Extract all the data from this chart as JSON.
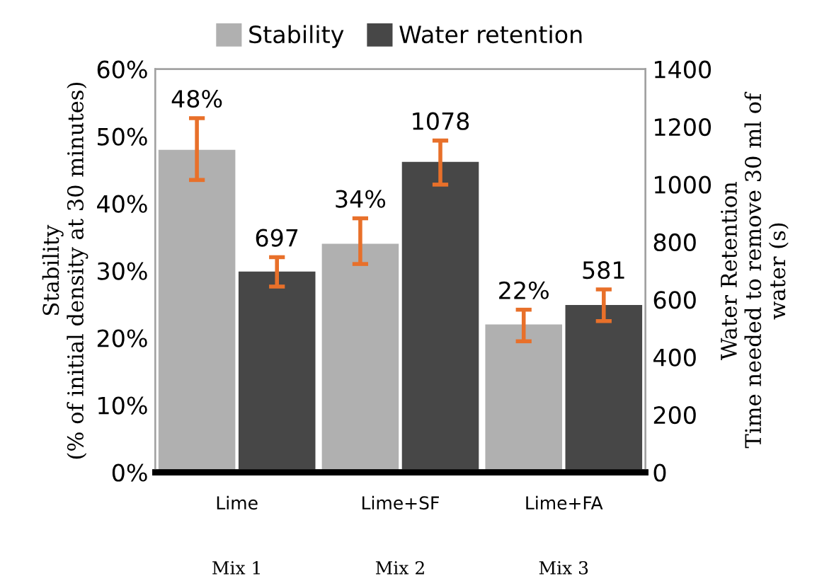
{
  "chart_data": {
    "type": "bar",
    "ylabel": "Stability\n(% of initial density at 30 minutes)",
    "y2label": "Water Retention\nTime needed to remove 30 ml of\nwater (s)",
    "categories": [
      "Lime",
      "Lime+SF",
      "Lime+FA"
    ],
    "annotations": [
      "Mix 1",
      "Mix 2",
      "Mix 3"
    ],
    "series": [
      {
        "name": "Stability",
        "color": "#b0b0b0",
        "values": [
          48,
          34,
          22
        ],
        "errors": [
          [
            43.5,
            52.7
          ],
          [
            31.0,
            37.8
          ],
          [
            19.5,
            24.2
          ]
        ],
        "value_labels": [
          "48%",
          "34%",
          "22%"
        ]
      },
      {
        "name": "Water retention",
        "color": "#474747",
        "axis": "y2",
        "values": [
          697,
          1078,
          581
        ],
        "errors": [
          [
            645,
            747
          ],
          [
            999,
            1152
          ],
          [
            525,
            635
          ]
        ],
        "value_labels": [
          "697",
          "1078",
          "581"
        ]
      }
    ],
    "ylim": [
      0,
      60
    ],
    "yticks": [
      {
        "value": 0,
        "label": "0%"
      },
      {
        "value": 10,
        "label": "10%"
      },
      {
        "value": 20,
        "label": "20%"
      },
      {
        "value": 30,
        "label": "30%"
      },
      {
        "value": 40,
        "label": "40%"
      },
      {
        "value": 50,
        "label": "50%"
      },
      {
        "value": 60,
        "label": "60%"
      }
    ],
    "y2lim": [
      0,
      1400
    ],
    "y2ticks": [
      0,
      200,
      400,
      600,
      800,
      1000,
      1200,
      1400
    ],
    "grid": false,
    "legend": "top"
  }
}
